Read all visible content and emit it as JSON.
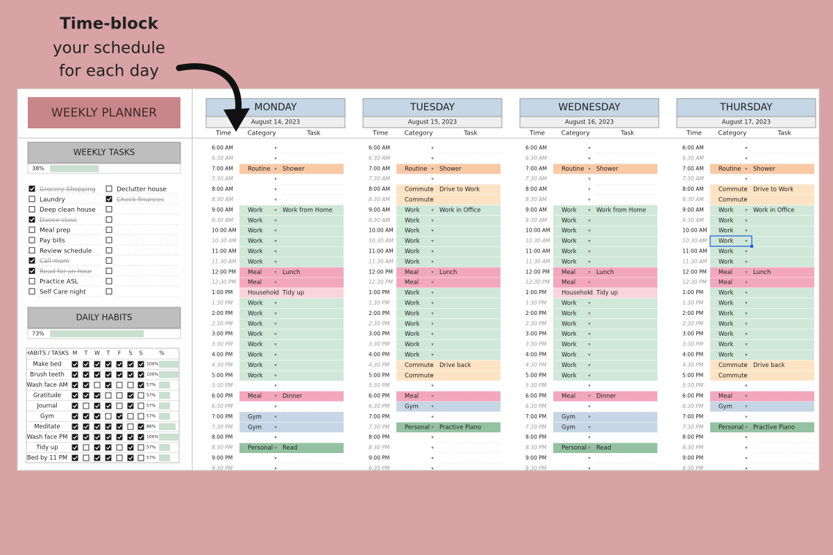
{
  "callout": {
    "bold": "Time-block",
    "lines": [
      "your schedule",
      "for each day"
    ]
  },
  "planner_title": "WEEKLY PLANNER",
  "weekly_tasks": {
    "title": "WEEKLY TASKS",
    "progress": {
      "value": 38,
      "label": "38%"
    },
    "left": [
      {
        "text": "Grocery Shopping",
        "checked": true
      },
      {
        "text": "Laundry",
        "checked": false
      },
      {
        "text": "Deep clean house",
        "checked": false
      },
      {
        "text": "Dance class",
        "checked": true
      },
      {
        "text": "Meal prep",
        "checked": false
      },
      {
        "text": "Pay bills",
        "checked": false
      },
      {
        "text": "Review schedule",
        "checked": false
      },
      {
        "text": "Call mom",
        "checked": true
      },
      {
        "text": "Read for an hour",
        "checked": true
      },
      {
        "text": "Practice ASL",
        "checked": false
      },
      {
        "text": "Self Care night",
        "checked": false
      }
    ],
    "right": [
      {
        "text": "Declutter house",
        "checked": false
      },
      {
        "text": "Check finances",
        "checked": true
      }
    ]
  },
  "daily_habits": {
    "title": "DAILY HABITS",
    "progress": {
      "value": 73,
      "label": "73%"
    },
    "header": [
      "HABITS / TASKS",
      "M",
      "T",
      "W",
      "T",
      "F",
      "S",
      "S",
      "%"
    ],
    "rows": [
      {
        "name": "Make bed",
        "days": [
          1,
          1,
          1,
          1,
          1,
          1,
          1
        ],
        "pct": {
          "value": 100,
          "label": "100%"
        }
      },
      {
        "name": "Brush teeth",
        "days": [
          1,
          1,
          1,
          1,
          1,
          1,
          1
        ],
        "pct": {
          "value": 100,
          "label": "100%"
        }
      },
      {
        "name": "Wash face AM",
        "days": [
          1,
          1,
          0,
          1,
          0,
          0,
          1
        ],
        "pct": {
          "value": 57,
          "label": "57%"
        }
      },
      {
        "name": "Gratitude",
        "days": [
          1,
          1,
          1,
          0,
          0,
          1,
          0
        ],
        "pct": {
          "value": 57,
          "label": "57%"
        }
      },
      {
        "name": "Journal",
        "days": [
          1,
          0,
          1,
          1,
          0,
          1,
          0
        ],
        "pct": {
          "value": 57,
          "label": "57%"
        }
      },
      {
        "name": "Gym",
        "days": [
          1,
          1,
          1,
          0,
          1,
          0,
          0
        ],
        "pct": {
          "value": 57,
          "label": "57%"
        }
      },
      {
        "name": "Meditate",
        "days": [
          1,
          1,
          1,
          1,
          1,
          0,
          1
        ],
        "pct": {
          "value": 86,
          "label": "86%"
        }
      },
      {
        "name": "Wash face PM",
        "days": [
          1,
          1,
          1,
          1,
          1,
          1,
          1
        ],
        "pct": {
          "value": 100,
          "label": "100%"
        }
      },
      {
        "name": "Tidy up",
        "days": [
          1,
          0,
          1,
          1,
          0,
          1,
          0
        ],
        "pct": {
          "value": 57,
          "label": "57%"
        }
      },
      {
        "name": "Bed by 11 PM",
        "days": [
          1,
          0,
          1,
          1,
          0,
          1,
          0
        ],
        "pct": {
          "value": 57,
          "label": "57%"
        }
      }
    ]
  },
  "column_headers": [
    "Time",
    "Category",
    "Task"
  ],
  "times": [
    "6:00 AM",
    "6:30 AM",
    "7:00 AM",
    "7:30 AM",
    "8:00 AM",
    "8:30 AM",
    "9:00 AM",
    "9:30 AM",
    "10:00 AM",
    "10:30 AM",
    "11:00 AM",
    "11:30 AM",
    "12:00 PM",
    "12:30 PM",
    "1:00 PM",
    "1:30 PM",
    "2:00 PM",
    "2:30 PM",
    "3:00 PM",
    "3:30 PM",
    "4:00 PM",
    "4:30 PM",
    "5:00 PM",
    "5:30 PM",
    "6:00 PM",
    "6:30 PM",
    "7:00 PM",
    "7:30 PM",
    "8:00 PM",
    "8:30 PM",
    "9:00 PM",
    "9:30 PM"
  ],
  "category_colors": {
    "Routine": "#f9c9a6",
    "Commute": "#fde3c4",
    "Work": "#cfe8d9",
    "Meal": "#f2a7bf",
    "Household": "#f9d4dd",
    "Gym": "#c6d6e6",
    "Personal": "#93c1a1"
  },
  "days": [
    {
      "name": "MONDAY",
      "date": "August 14, 2023",
      "entries": [
        null,
        null,
        {
          "category": "Routine",
          "task": "Shower"
        },
        null,
        null,
        null,
        {
          "category": "Work",
          "task": "Work from Home"
        },
        {
          "category": "Work"
        },
        {
          "category": "Work"
        },
        {
          "category": "Work"
        },
        {
          "category": "Work"
        },
        {
          "category": "Work"
        },
        {
          "category": "Meal",
          "task": "Lunch"
        },
        {
          "category": "Meal"
        },
        {
          "category": "Household",
          "task": "Tidy up"
        },
        {
          "category": "Work"
        },
        {
          "category": "Work"
        },
        {
          "category": "Work"
        },
        {
          "category": "Work"
        },
        {
          "category": "Work"
        },
        {
          "category": "Work"
        },
        {
          "category": "Work"
        },
        {
          "category": "Work"
        },
        null,
        {
          "category": "Meal",
          "task": "Dinner"
        },
        null,
        {
          "category": "Gym"
        },
        {
          "category": "Gym"
        },
        null,
        {
          "category": "Personal",
          "task": "Read"
        },
        null,
        null
      ]
    },
    {
      "name": "TUESDAY",
      "date": "August 15, 2023",
      "entries": [
        null,
        null,
        {
          "category": "Routine",
          "task": "Shower"
        },
        null,
        {
          "category": "Commute",
          "task": "Drive to Work"
        },
        {
          "category": "Commute"
        },
        {
          "category": "Work",
          "task": "Work in Office"
        },
        {
          "category": "Work"
        },
        {
          "category": "Work"
        },
        {
          "category": "Work"
        },
        {
          "category": "Work"
        },
        {
          "category": "Work"
        },
        {
          "category": "Meal",
          "task": "Lunch"
        },
        {
          "category": "Meal"
        },
        {
          "category": "Work"
        },
        {
          "category": "Work"
        },
        {
          "category": "Work"
        },
        {
          "category": "Work"
        },
        {
          "category": "Work"
        },
        {
          "category": "Work"
        },
        {
          "category": "Work"
        },
        {
          "category": "Commute",
          "task": "Drive back"
        },
        {
          "category": "Commute"
        },
        null,
        {
          "category": "Meal"
        },
        {
          "category": "Gym"
        },
        null,
        {
          "category": "Personal",
          "task": "Practive Piano"
        },
        null,
        null,
        null,
        null
      ]
    },
    {
      "name": "WEDNESDAY",
      "date": "August 16, 2023",
      "entries": [
        null,
        null,
        {
          "category": "Routine",
          "task": "Shower"
        },
        null,
        null,
        null,
        {
          "category": "Work",
          "task": "Work from Home"
        },
        {
          "category": "Work"
        },
        {
          "category": "Work"
        },
        {
          "category": "Work"
        },
        {
          "category": "Work"
        },
        {
          "category": "Work"
        },
        {
          "category": "Meal",
          "task": "Lunch"
        },
        {
          "category": "Meal"
        },
        {
          "category": "Household",
          "task": "Tidy up"
        },
        {
          "category": "Work"
        },
        {
          "category": "Work"
        },
        {
          "category": "Work"
        },
        {
          "category": "Work"
        },
        {
          "category": "Work"
        },
        {
          "category": "Work"
        },
        {
          "category": "Work"
        },
        {
          "category": "Work"
        },
        null,
        {
          "category": "Meal",
          "task": "Dinner"
        },
        null,
        {
          "category": "Gym"
        },
        {
          "category": "Gym"
        },
        null,
        {
          "category": "Personal",
          "task": "Read"
        },
        null,
        null
      ]
    },
    {
      "name": "THURSDAY",
      "date": "August 17, 2023",
      "entries": [
        null,
        null,
        {
          "category": "Routine",
          "task": "Shower"
        },
        null,
        {
          "category": "Commute",
          "task": "Drive to Work"
        },
        {
          "category": "Commute"
        },
        {
          "category": "Work",
          "task": "Work in Office"
        },
        {
          "category": "Work"
        },
        {
          "category": "Work"
        },
        {
          "category": "Work"
        },
        {
          "category": "Work"
        },
        {
          "category": "Work"
        },
        {
          "category": "Meal",
          "task": "Lunch"
        },
        {
          "category": "Meal"
        },
        {
          "category": "Work"
        },
        {
          "category": "Work"
        },
        {
          "category": "Work"
        },
        {
          "category": "Work"
        },
        {
          "category": "Work"
        },
        {
          "category": "Work"
        },
        {
          "category": "Work"
        },
        {
          "category": "Commute",
          "task": "Drive back"
        },
        {
          "category": "Commute"
        },
        null,
        {
          "category": "Meal"
        },
        {
          "category": "Gym"
        },
        null,
        {
          "category": "Personal",
          "task": "Practive Piano"
        },
        null,
        null,
        null,
        null
      ]
    }
  ]
}
